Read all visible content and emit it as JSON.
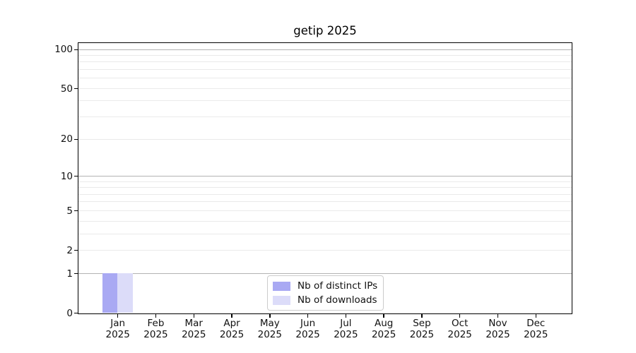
{
  "chart_data": {
    "type": "bar",
    "title": "getip 2025",
    "xlabel": "",
    "ylabel": "",
    "categories": [
      "Jan",
      "Feb",
      "Mar",
      "Apr",
      "May",
      "Jun",
      "Jul",
      "Aug",
      "Sep",
      "Oct",
      "Nov",
      "Dec"
    ],
    "category_year": "2025",
    "series": [
      {
        "name": "Nb of distinct IPs",
        "color": "#a9a9f3",
        "values": [
          1,
          0,
          0,
          0,
          0,
          0,
          0,
          0,
          0,
          0,
          0,
          0
        ]
      },
      {
        "name": "Nb of downloads",
        "color": "#dcdcf9",
        "values": [
          1,
          0,
          0,
          0,
          0,
          0,
          0,
          0,
          0,
          0,
          0,
          0
        ]
      }
    ],
    "yscale": "log1p",
    "ylim": [
      0,
      112
    ],
    "yticks": [
      0,
      1,
      2,
      5,
      10,
      20,
      50,
      100
    ],
    "minor_gridline_values": [
      2,
      3,
      4,
      5,
      6,
      7,
      8,
      9,
      20,
      30,
      40,
      50,
      60,
      70,
      80,
      90
    ],
    "major_gridline_values": [
      1,
      10,
      100
    ],
    "grid": "horizontal",
    "legend_position": "lower center inside axes",
    "colors": {
      "axes": "#000000",
      "major_grid": "#b3b3b3",
      "minor_grid": "#eaeaea",
      "tick_text": "#111111",
      "legend_border": "#cccccc"
    }
  }
}
